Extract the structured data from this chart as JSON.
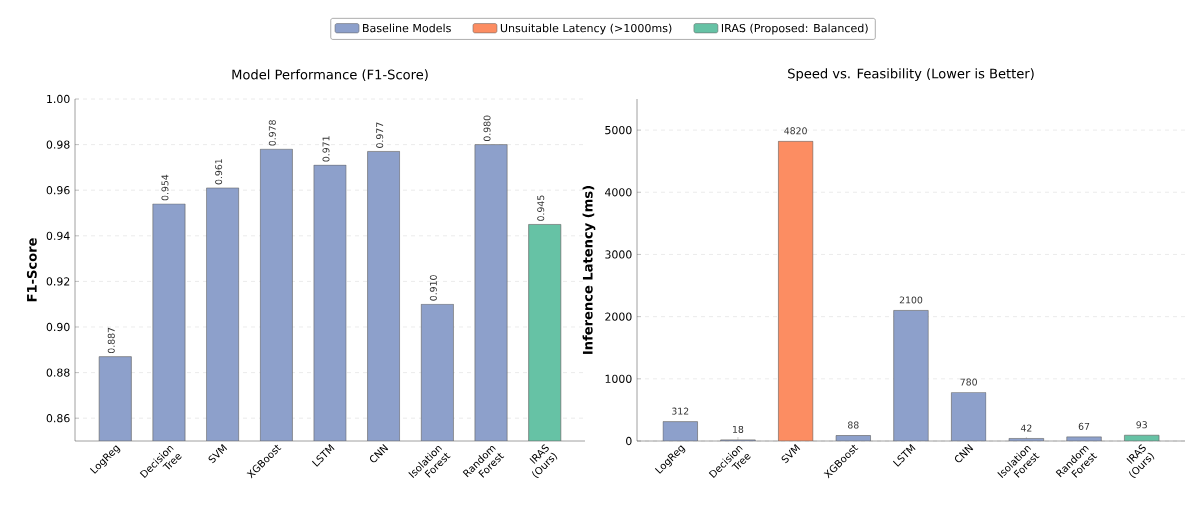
{
  "chart_data": [
    {
      "type": "bar",
      "title": "Model Performance (F1-Score)",
      "ylabel": "F1-Score",
      "categories": [
        "LogReg",
        "Decision Tree",
        "SVM",
        "XGBoost",
        "LSTM",
        "CNN",
        "Isolation Forest",
        "Random Forest",
        "IRAS (Ours)"
      ],
      "values": [
        0.887,
        0.954,
        0.961,
        0.978,
        0.971,
        0.977,
        0.91,
        0.98,
        0.945
      ],
      "value_labels": [
        "0.887",
        "0.954",
        "0.961",
        "0.978",
        "0.971",
        "0.977",
        "0.910",
        "0.980",
        "0.945"
      ],
      "colors": [
        "#8da0cb",
        "#8da0cb",
        "#8da0cb",
        "#8da0cb",
        "#8da0cb",
        "#8da0cb",
        "#8da0cb",
        "#8da0cb",
        "#66c2a5"
      ],
      "ylim": [
        0.85,
        1.0
      ],
      "yticks": [
        {
          "value": 0.86,
          "label": "0.86"
        },
        {
          "value": 0.88,
          "label": "0.88"
        },
        {
          "value": 0.9,
          "label": "0.90"
        },
        {
          "value": 0.92,
          "label": "0.92"
        },
        {
          "value": 0.94,
          "label": "0.94"
        },
        {
          "value": 0.96,
          "label": "0.96"
        },
        {
          "value": 0.98,
          "label": "0.98"
        },
        {
          "value": 1.0,
          "label": "1.00"
        }
      ],
      "grid": "y"
    },
    {
      "type": "bar",
      "title": "Speed vs. Feasibility (Lower is Better)",
      "ylabel": "Inference Latency (ms)",
      "categories": [
        "LogReg",
        "Decision Tree",
        "SVM",
        "XGBoost",
        "LSTM",
        "CNN",
        "Isolation Forest",
        "Random Forest",
        "IRAS (Ours)"
      ],
      "series": [
        {
          "name": "Baseline Models",
          "color": "#8da0cb",
          "values": [
            312,
            18,
            null,
            88,
            2100,
            780,
            42,
            67,
            null
          ],
          "value_labels": [
            "312",
            "18",
            null,
            "88",
            "2100",
            "780",
            "42",
            "67",
            null
          ]
        },
        {
          "name": "Unsuitable Latency (>1000ms)",
          "color": "#fc8d62",
          "values": [
            null,
            null,
            4820,
            null,
            null,
            null,
            null,
            null,
            null
          ],
          "value_labels": [
            null,
            null,
            "4820",
            null,
            null,
            null,
            null,
            null,
            null
          ]
        },
        {
          "name": "IRAS (Proposed: Balanced)",
          "color": "#66c2a5",
          "values": [
            null,
            null,
            null,
            null,
            null,
            null,
            null,
            null,
            93
          ],
          "value_labels": [
            null,
            null,
            null,
            null,
            null,
            null,
            null,
            null,
            "93"
          ]
        }
      ],
      "ylim": [
        0,
        5500
      ],
      "yticks": [
        0,
        1000,
        2000,
        3000,
        4000,
        5000
      ],
      "grid": "y",
      "legend": "top"
    }
  ]
}
